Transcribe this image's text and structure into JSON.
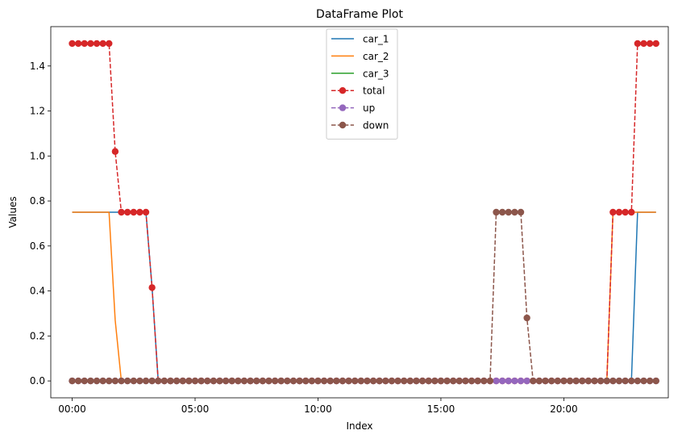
{
  "chart_data": {
    "type": "line",
    "title": "DataFrame Plot",
    "xlabel": "Index",
    "ylabel": "Values",
    "xlim": [
      -0.87,
      24.25
    ],
    "ylim": [
      -0.075,
      1.575
    ],
    "x_ticks": [
      {
        "value": 0,
        "label": "00:00"
      },
      {
        "value": 5,
        "label": "05:00"
      },
      {
        "value": 10,
        "label": "10:00"
      },
      {
        "value": 15,
        "label": "15:00"
      },
      {
        "value": 20,
        "label": "20:00"
      }
    ],
    "y_ticks": [
      0.0,
      0.2,
      0.4,
      0.6,
      0.8,
      1.0,
      1.2,
      1.4
    ],
    "y_tick_labels": [
      "0.0",
      "0.2",
      "0.4",
      "0.6",
      "0.8",
      "1.0",
      "1.2",
      "1.4"
    ],
    "grid": false,
    "legend_position": "top-center",
    "x_step_hours": 0.25,
    "series": [
      {
        "name": "car_1",
        "color": "#1f77b4",
        "style": "solid",
        "marker": false,
        "segments": [
          {
            "from": 0,
            "to": 12,
            "value": 0.75
          },
          {
            "from": 13,
            "to": 14,
            "values": [
              0.415,
              0
            ]
          },
          {
            "from": 15,
            "to": 91,
            "value": 0
          },
          {
            "from": 92,
            "to": 95,
            "value": 0.75
          }
        ]
      },
      {
        "name": "car_2",
        "color": "#ff7f0e",
        "style": "solid",
        "marker": false,
        "segments": [
          {
            "from": 0,
            "to": 6,
            "value": 0.75
          },
          {
            "from": 7,
            "to": 7,
            "value": 0.27
          },
          {
            "from": 8,
            "to": 87,
            "value": 0
          },
          {
            "from": 88,
            "to": 95,
            "value": 0.75
          }
        ]
      },
      {
        "name": "car_3",
        "color": "#2ca02c",
        "style": "solid",
        "marker": false,
        "segments": [
          {
            "from": 0,
            "to": 95,
            "value": 0
          }
        ]
      },
      {
        "name": "total",
        "color": "#d62728",
        "style": "dashed",
        "marker": true,
        "segments": [
          {
            "from": 0,
            "to": 6,
            "value": 1.5
          },
          {
            "from": 7,
            "to": 7,
            "value": 1.02
          },
          {
            "from": 8,
            "to": 12,
            "value": 0.75
          },
          {
            "from": 13,
            "to": 13,
            "value": 0.415
          },
          {
            "from": 14,
            "to": 87,
            "value": 0
          },
          {
            "from": 88,
            "to": 91,
            "value": 0.75
          },
          {
            "from": 92,
            "to": 95,
            "value": 1.5
          }
        ]
      },
      {
        "name": "up",
        "color": "#9467bd",
        "style": "dashed",
        "marker": true,
        "segments": [
          {
            "from": 0,
            "to": 95,
            "value": 0
          }
        ]
      },
      {
        "name": "down",
        "color": "#8c564b",
        "style": "dashed",
        "marker": true,
        "segments": [
          {
            "from": 0,
            "to": 68,
            "value": 0
          },
          {
            "from": 69,
            "to": 73,
            "value": 0.75
          },
          {
            "from": 74,
            "to": 74,
            "value": 0.28
          },
          {
            "from": 75,
            "to": 95,
            "value": 0
          }
        ]
      }
    ]
  }
}
